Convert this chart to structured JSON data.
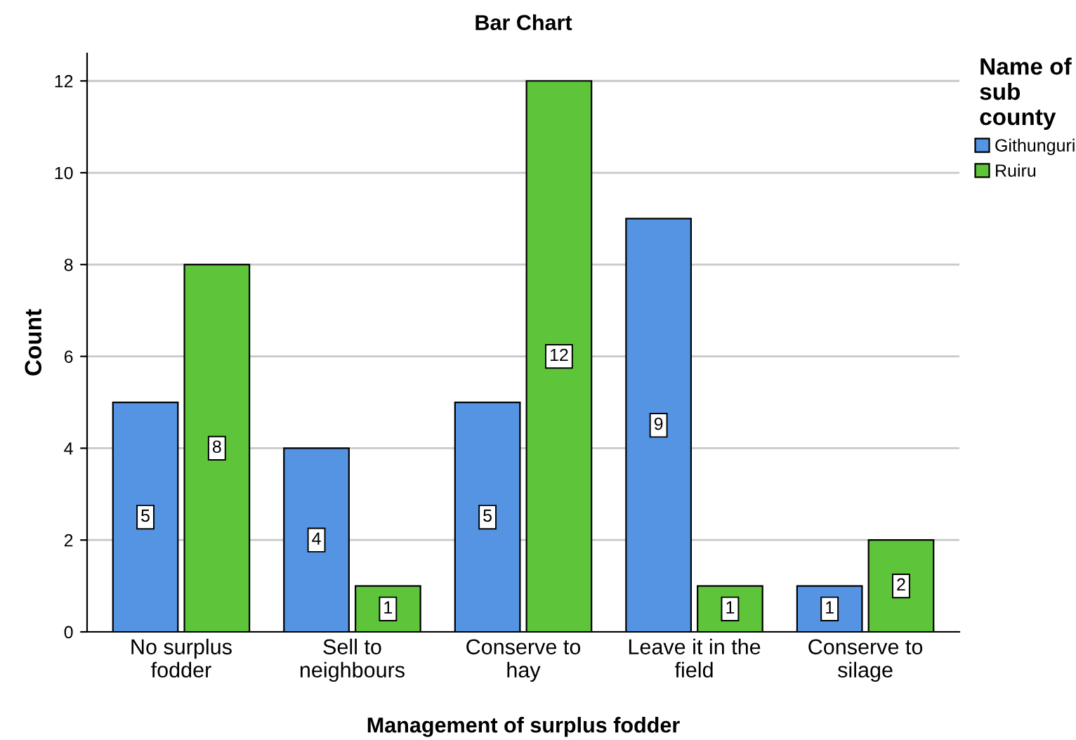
{
  "chart_data": {
    "type": "bar",
    "title": "Bar Chart",
    "xlabel": "Management of surplus fodder",
    "ylabel": "Count",
    "legend_title": "Name of\nsub\ncounty",
    "categories": [
      "No surplus\nfodder",
      "Sell to\nneighbours",
      "Conserve to\nhay",
      "Leave it in the\nfield",
      "Conserve to\nsilage"
    ],
    "series": [
      {
        "name": "Githunguri",
        "color": "#5594e3",
        "values": [
          5,
          4,
          5,
          9,
          1
        ]
      },
      {
        "name": "Ruiru",
        "color": "#5ec43a",
        "values": [
          8,
          1,
          12,
          1,
          2
        ]
      }
    ],
    "ylim": [
      0,
      12.6
    ],
    "yticks": [
      0,
      2,
      4,
      6,
      8,
      10,
      12
    ],
    "grid": "y",
    "legend": "right",
    "data_labels": true
  }
}
